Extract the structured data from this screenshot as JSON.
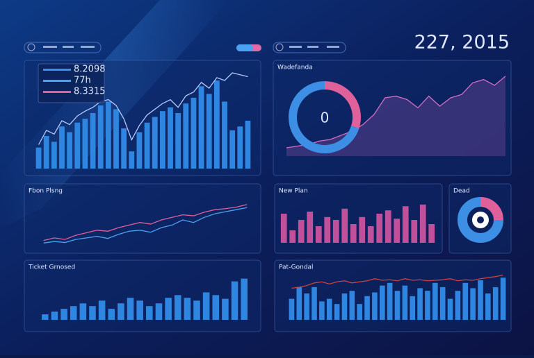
{
  "header": {
    "headline": "227, 2015"
  },
  "chart_data": [
    {
      "type": "bar",
      "title": "",
      "ylim": [
        0,
        100
      ],
      "stats": [
        {
          "label": "8.2098",
          "color": "#3d8fe6"
        },
        {
          "label": "77h",
          "color": "#4aa3f0"
        },
        {
          "label": "8.3315",
          "color": "#e0609c"
        }
      ],
      "series": [
        {
          "type": "bar",
          "color": "#2f86e0",
          "values": [
            22,
            34,
            28,
            44,
            38,
            48,
            52,
            58,
            66,
            70,
            62,
            42,
            18,
            38,
            48,
            54,
            60,
            64,
            58,
            68,
            74,
            86,
            78,
            92,
            70,
            40,
            44,
            50
          ]
        },
        {
          "type": "line",
          "color": "#b9c8ff",
          "values": [
            25,
            40,
            36,
            50,
            46,
            55,
            60,
            64,
            70,
            72,
            66,
            52,
            30,
            45,
            56,
            62,
            68,
            72,
            64,
            76,
            80,
            90,
            84,
            95,
            92,
            100,
            98,
            96
          ]
        }
      ]
    },
    {
      "type": "area",
      "title": "Wadefanda",
      "ylim": [
        0,
        100
      ],
      "series": [
        {
          "type": "area",
          "color": "#d36ec4",
          "values": [
            10,
            12,
            14,
            18,
            20,
            25,
            30,
            38,
            50,
            70,
            72,
            68,
            58,
            72,
            60,
            70,
            74,
            88,
            92,
            85,
            96
          ]
        }
      ]
    },
    {
      "type": "gauge",
      "title": "",
      "center_label": "0",
      "values": [
        30,
        70
      ],
      "colors": [
        "#e0609c",
        "#3d8fe6"
      ]
    },
    {
      "type": "line",
      "title": "Fbon Plsng",
      "ylim": [
        0,
        100
      ],
      "series": [
        {
          "type": "line",
          "color": "#e0609c",
          "values": [
            10,
            15,
            12,
            20,
            25,
            30,
            28,
            35,
            40,
            45,
            42,
            50,
            55,
            60,
            58,
            65,
            70,
            72,
            75,
            80
          ]
        },
        {
          "type": "line",
          "color": "#4aa3f0",
          "values": [
            5,
            8,
            6,
            12,
            15,
            18,
            14,
            22,
            28,
            30,
            26,
            35,
            40,
            50,
            45,
            55,
            62,
            66,
            70,
            74
          ]
        }
      ]
    },
    {
      "type": "bar",
      "title": "New Plan",
      "ylim": [
        0,
        100
      ],
      "series": [
        {
          "type": "bar",
          "color": "#c0509a",
          "values": [
            70,
            30,
            55,
            75,
            40,
            62,
            55,
            82,
            45,
            62,
            40,
            70,
            78,
            58,
            88,
            55,
            92,
            45
          ]
        }
      ]
    },
    {
      "type": "donut",
      "title": "Dead",
      "values": [
        25,
        75
      ],
      "colors": [
        "#e0609c",
        "#3d8fe6"
      ]
    },
    {
      "type": "bar",
      "title": "Ticket Grnosed",
      "ylim": [
        0,
        100
      ],
      "series": [
        {
          "type": "bar",
          "color": "#2f86e0",
          "values": [
            12,
            18,
            24,
            30,
            36,
            30,
            42,
            24,
            36,
            48,
            42,
            30,
            36,
            48,
            54,
            48,
            42,
            60,
            54,
            46,
            84,
            90
          ]
        }
      ]
    },
    {
      "type": "bar",
      "title": "Pat-Gondal",
      "ylim": [
        0,
        100
      ],
      "series": [
        {
          "type": "bar",
          "color": "#2f86e0",
          "values": [
            40,
            62,
            50,
            62,
            35,
            40,
            30,
            50,
            55,
            30,
            45,
            52,
            65,
            70,
            55,
            65,
            45,
            60,
            55,
            70,
            62,
            40,
            55,
            70,
            60,
            75,
            50,
            62,
            80
          ]
        },
        {
          "type": "line",
          "color": "#d2413f",
          "values": [
            60,
            62,
            65,
            70,
            72,
            68,
            72,
            74,
            70,
            72,
            74,
            78,
            75,
            76,
            74,
            78,
            75,
            76,
            74,
            75,
            76,
            78,
            74,
            76,
            75,
            78,
            80,
            82,
            85
          ]
        }
      ]
    }
  ]
}
